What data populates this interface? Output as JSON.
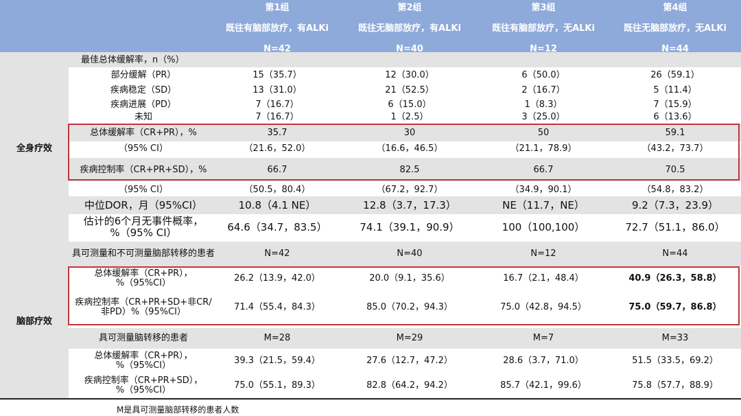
{
  "header": {
    "groups": [
      {
        "name": "第1组",
        "desc": "既往有脑部放疗，有ALKi",
        "n": "N=42"
      },
      {
        "name": "第2组",
        "desc": "既往无脑部放疗，有ALKi",
        "n": "N=40"
      },
      {
        "name": "第3组",
        "desc": "既往有脑部放疗，无ALKi",
        "n": "N=12"
      },
      {
        "name": "第4组",
        "desc": "既往无脑部放疗，无ALKi",
        "n": "N=44"
      }
    ]
  },
  "sections": {
    "systemic": "全身疗效",
    "brain": "脑部疗效"
  },
  "rows": [
    {
      "label": "最佳总体缓解率，n（%）",
      "values": [
        "",
        "",
        "",
        ""
      ]
    },
    {
      "label": "部分缓解（PR）",
      "values": [
        "15（35.7）",
        "12（30.0）",
        "6（50.0）",
        "26（59.1）"
      ]
    },
    {
      "label": "疾病稳定（SD）",
      "values": [
        "13（31.0）",
        "21（52.5）",
        "2（16.7）",
        "5（11.4）"
      ]
    },
    {
      "label": "疾病进展（PD）",
      "values": [
        "7（16.7）",
        "6（15.0）",
        "1（8.3）",
        "7（15.9）"
      ]
    },
    {
      "label": "未知",
      "values": [
        "7（16.7）",
        "1（2.5）",
        "3（25.0）",
        "6（13.6）"
      ]
    },
    {
      "label": "总体缓解率（CR+PR），%",
      "values": [
        "35.7",
        "30",
        "50",
        "59.1"
      ]
    },
    {
      "label": "（95% CI）",
      "values": [
        "（21.6，52.0）",
        "（16.6，46.5）",
        "（21.1，78.9）",
        "（43.2，73.7）"
      ]
    },
    {
      "label": "疾病控制率（CR+PR+SD），%",
      "values": [
        "66.7",
        "82.5",
        "66.7",
        "70.5"
      ]
    },
    {
      "label": "（95% CI）",
      "values": [
        "（50.5，80.4）",
        "（67.2，92.7）",
        "（34.9，90.1）",
        "（54.8，83.2）"
      ]
    },
    {
      "label": "中位DOR，月（95%CI）",
      "values": [
        "10.8（4.1 NE）",
        "12.8（3.7，17.3）",
        "NE（11.7，NE）",
        "9.2（7.3，23.9）"
      ]
    },
    {
      "label": "估计的6个月无事件概率，%（95% CI）",
      "values": [
        "64.6（34.7，83.5）",
        "74.1（39.1，90.9）",
        "100（100,100）",
        "72.7（51.1，86.0）"
      ]
    },
    {
      "label": "具可测量和不可测量脑部转移的患者",
      "values": [
        "N=42",
        "N=40",
        "N=12",
        "N=44"
      ]
    },
    {
      "label": "总体缓解率（CR+PR），%（95%CI）",
      "values": [
        "26.2（13.9，42.0）",
        "20.0（9.1，35.6）",
        "16.7（2.1，48.4）",
        "40.9（26.3，58.8）"
      ]
    },
    {
      "label": "疾病控制率（CR+PR+SD+非CR/非PD）%（95%CI）",
      "values": [
        "71.4（55.4，84.3）",
        "85.0（70.2，94.3）",
        "75.0（42.8，94.5）",
        "75.0（59.7，86.8）"
      ]
    },
    {
      "label": "具可测量脑转移的患者",
      "values": [
        "M=28",
        "M=29",
        "M=7",
        "M=33"
      ]
    },
    {
      "label": "总体缓解率（CR+PR），%（95%CI）",
      "values": [
        "39.3（21.5，59.4）",
        "27.6（12.7，47.2）",
        "28.6（3.7，71.0）",
        "51.5（33.5，69.2）"
      ]
    },
    {
      "label": "疾病控制率（CR+PR+SD），%（95%CI）",
      "values": [
        "75.0（55.1，89.3）",
        "82.8（64.2，94.2）",
        "85.7（42.1，99.6）",
        "75.8（57.7，88.9）"
      ]
    }
  ],
  "footnote": "M是具可测量脑部转移的患者人数",
  "colors": {
    "header_bg": "#8eaadb",
    "band_gray": "#e3e3e3",
    "highlight_border": "#c0343c"
  }
}
